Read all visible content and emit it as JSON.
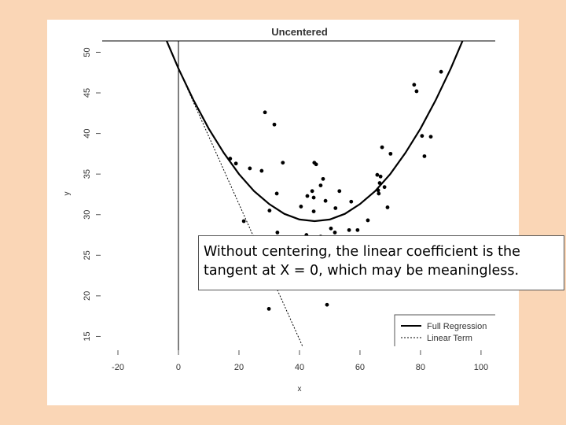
{
  "chart_data": {
    "type": "scatter",
    "title": "Uncentered",
    "x_label": "x",
    "y_label": "y",
    "xlim": [
      -25.2,
      104.7
    ],
    "ylim": [
      13.3,
      51.4
    ],
    "xticks": [
      -20,
      0,
      20,
      40,
      60,
      80,
      100
    ],
    "yticks": [
      15,
      20,
      25,
      30,
      35,
      40,
      45,
      50
    ],
    "vline": 0,
    "legend": "bottom-right",
    "color": "#000000",
    "points": {
      "x": [
        17.1,
        19.0,
        23.6,
        27.5,
        28.6,
        31.7,
        34.5,
        32.5,
        30.1,
        21.6,
        32.7,
        29.9,
        44.9,
        45.5,
        47.8,
        44.2,
        44.7,
        42.6,
        47.0,
        40.5,
        44.7,
        48.6,
        53.2,
        51.9,
        57.1,
        50.4,
        51.7,
        56.4,
        59.2,
        62.6,
        42.3,
        47.0,
        49.1,
        65.7,
        66.8,
        66.5,
        68.1,
        66.0,
        66.2,
        67.3,
        70.1,
        69.1,
        77.9,
        78.7,
        80.5,
        83.4,
        81.3,
        86.8
      ],
      "y": [
        36.9,
        36.3,
        35.7,
        35.4,
        42.6,
        41.1,
        36.4,
        32.6,
        30.5,
        29.2,
        27.8,
        18.4,
        36.4,
        36.2,
        34.4,
        32.9,
        32.1,
        32.3,
        33.6,
        31.0,
        30.4,
        31.7,
        32.9,
        30.8,
        31.6,
        28.3,
        27.8,
        28.1,
        28.1,
        29.3,
        27.5,
        27.3,
        18.9,
        34.9,
        34.7,
        33.9,
        33.4,
        33.0,
        32.6,
        38.3,
        37.5,
        30.9,
        46.0,
        45.2,
        39.7,
        39.6,
        37.2,
        47.6
      ]
    },
    "series": [
      {
        "name": "Full Regression",
        "color": "#000000",
        "dash": "none",
        "x": [
          -4,
          0,
          5,
          10,
          15,
          20,
          25,
          30,
          35,
          40,
          45,
          50,
          55,
          60,
          65,
          70,
          75,
          80,
          85,
          90,
          94
        ],
        "y": [
          51.5,
          48.0,
          44.1,
          40.6,
          37.6,
          35.0,
          32.9,
          31.3,
          30.1,
          29.4,
          29.2,
          29.4,
          30.1,
          31.3,
          32.9,
          35.0,
          37.6,
          40.6,
          44.1,
          48.0,
          51.5
        ]
      },
      {
        "name": "Linear Term",
        "color": "#000000",
        "dash": "2,2",
        "x": [
          0,
          41
        ],
        "y": [
          48.0,
          13.8
        ]
      }
    ],
    "annotation": [
      "Without centering, the linear coefficient is the",
      "tangent at X = 0, which may be meaningless."
    ]
  }
}
